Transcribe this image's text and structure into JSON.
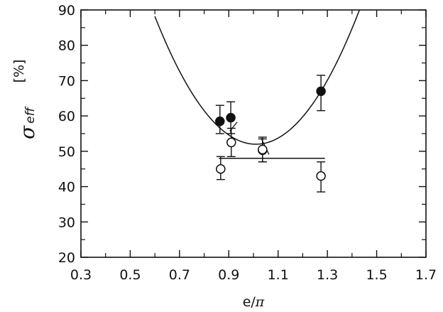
{
  "chart_data": {
    "type": "scatter",
    "xlabel": {
      "base": "e/",
      "symbol": "π"
    },
    "ylabel": {
      "symbol": "σ",
      "subscript": "eff",
      "unit": "[%]"
    },
    "xlim": [
      0.3,
      1.7
    ],
    "ylim": [
      20,
      90
    ],
    "x_ticks": [
      "0.3",
      "0.5",
      "0.7",
      "0.9",
      "1.1",
      "1.3",
      "1.5",
      "1.7"
    ],
    "y_ticks": [
      "20",
      "30",
      "40",
      "50",
      "60",
      "70",
      "80",
      "90"
    ],
    "grid": false,
    "series": [
      {
        "marker": "filled-circle",
        "points": [
          {
            "x": 0.864,
            "y": 58.5,
            "err": [
              55.0,
              63.0
            ]
          },
          {
            "x": 0.908,
            "y": 59.5,
            "err": [
              55.0,
              64.0
            ]
          },
          {
            "x": 1.037,
            "y": 50.3,
            "err": [
              47.0,
              53.5
            ]
          },
          {
            "x": 1.274,
            "y": 67.0,
            "err": [
              61.5,
              71.5
            ]
          }
        ]
      },
      {
        "marker": "open-circle",
        "points": [
          {
            "x": 0.867,
            "y": 45.0,
            "err": [
              42.0,
              48.5
            ]
          },
          {
            "x": 0.91,
            "y": 52.5,
            "err": [
              48.5,
              56.5
            ]
          },
          {
            "x": 1.037,
            "y": 50.5,
            "err": [
              47.0,
              54.0
            ]
          },
          {
            "x": 1.274,
            "y": 43.0,
            "err": [
              38.5,
              47.0
            ]
          }
        ]
      }
    ],
    "fits": [
      {
        "shape": "parabola",
        "vertex_x": 1.01,
        "vertex_y": 52.0,
        "through_x": 1.274,
        "through_y": 67.0
      },
      {
        "shape": "horizontal-line",
        "y": 48.0,
        "x_range": [
          0.86,
          1.29
        ]
      }
    ]
  }
}
